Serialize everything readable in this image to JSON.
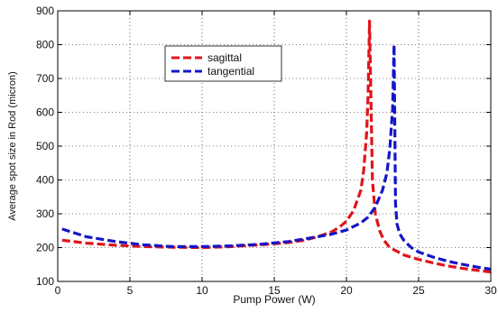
{
  "chart_data": {
    "type": "line",
    "title": "",
    "xlabel": "Pump Power (W)",
    "ylabel": "Average spot size in Rod (micron)",
    "xlim": [
      0,
      30
    ],
    "ylim": [
      100,
      900
    ],
    "xticks": [
      0,
      5,
      10,
      15,
      20,
      25,
      30
    ],
    "yticks": [
      100,
      200,
      300,
      400,
      500,
      600,
      700,
      800,
      900
    ],
    "grid": true,
    "grid_style": "dotted",
    "legend_position": "top-left-inside",
    "series": [
      {
        "name": "sagittal",
        "color": "#e0141a",
        "line_style": "dashed",
        "x": [
          0.3,
          2,
          4,
          6,
          8,
          10,
          12,
          14,
          16,
          17,
          18,
          19,
          19.5,
          20,
          20.5,
          21,
          21.2,
          21.4,
          21.5,
          21.6,
          21.8,
          22,
          22.3,
          22.6,
          23,
          24,
          25,
          26,
          27,
          28,
          29,
          30
        ],
        "y": [
          222,
          213,
          207,
          203,
          201,
          200,
          203,
          208,
          215,
          221,
          232,
          247,
          260,
          278,
          310,
          370,
          430,
          540,
          650,
          870,
          400,
          300,
          250,
          222,
          200,
          178,
          165,
          155,
          146,
          139,
          133,
          128
        ]
      },
      {
        "name": "tangential",
        "color": "#1515c8",
        "line_style": "dashed",
        "x": [
          0.3,
          2,
          4,
          6,
          8,
          10,
          12,
          14,
          16,
          18,
          19,
          20,
          21,
          21.5,
          22,
          22.5,
          22.8,
          23,
          23.2,
          23.3,
          23.4,
          23.5,
          23.7,
          24,
          24.5,
          25,
          26,
          27,
          28,
          29,
          30
        ],
        "y": [
          255,
          232,
          218,
          208,
          203,
          203,
          205,
          210,
          218,
          232,
          240,
          252,
          273,
          290,
          320,
          370,
          420,
          490,
          610,
          800,
          330,
          270,
          240,
          220,
          200,
          187,
          172,
          160,
          151,
          143,
          136
        ]
      }
    ]
  }
}
